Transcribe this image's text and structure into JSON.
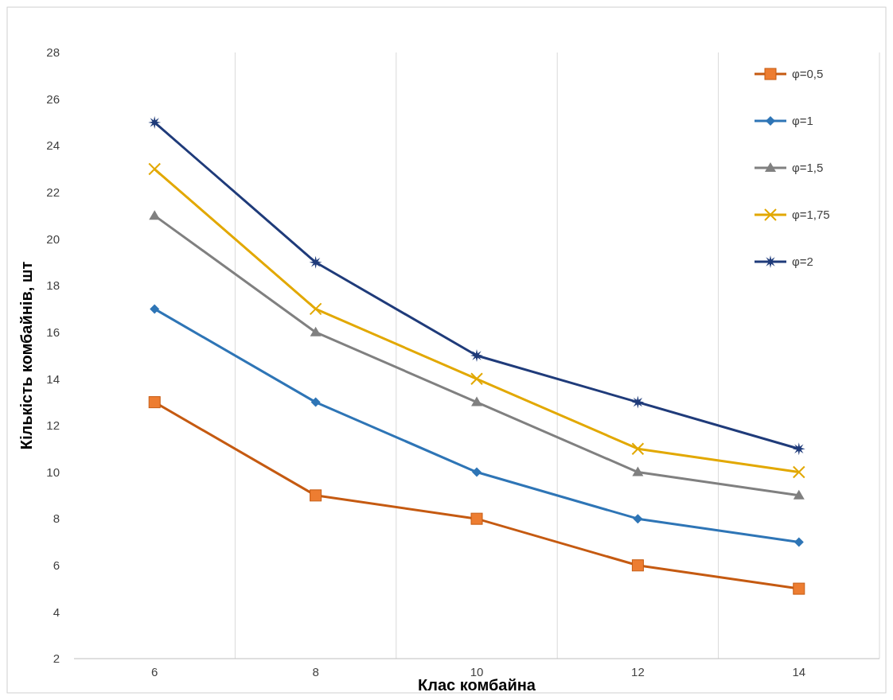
{
  "chart_data": {
    "type": "line",
    "xlabel": "Клас комбайна",
    "ylabel": "Кількість комбайнів, шт",
    "categories": [
      "6",
      "8",
      "10",
      "12",
      "14"
    ],
    "series": [
      {
        "name": "φ=0,5",
        "color": "#c55a11",
        "marker": "square",
        "values": [
          13,
          9,
          8,
          6,
          5
        ]
      },
      {
        "name": "φ=1",
        "color": "#2e75b6",
        "marker": "diamond",
        "values": [
          17,
          13,
          10,
          8,
          7
        ]
      },
      {
        "name": "φ=1,5",
        "color": "#808080",
        "marker": "triangle",
        "values": [
          21,
          16,
          13,
          10,
          9
        ]
      },
      {
        "name": "φ=1,75",
        "color": "#e2a800",
        "marker": "cross",
        "values": [
          23,
          17,
          14,
          11,
          10
        ]
      },
      {
        "name": "φ=2",
        "color": "#1f3b7a",
        "marker": "star",
        "values": [
          25,
          19,
          15,
          13,
          11
        ]
      }
    ],
    "ylim": [
      2,
      28
    ],
    "yticks": [
      2,
      4,
      6,
      8,
      10,
      12,
      14,
      16,
      18,
      20,
      22,
      24,
      26,
      28
    ],
    "grid": "x",
    "legend": "top right",
    "line_style": "solid"
  }
}
